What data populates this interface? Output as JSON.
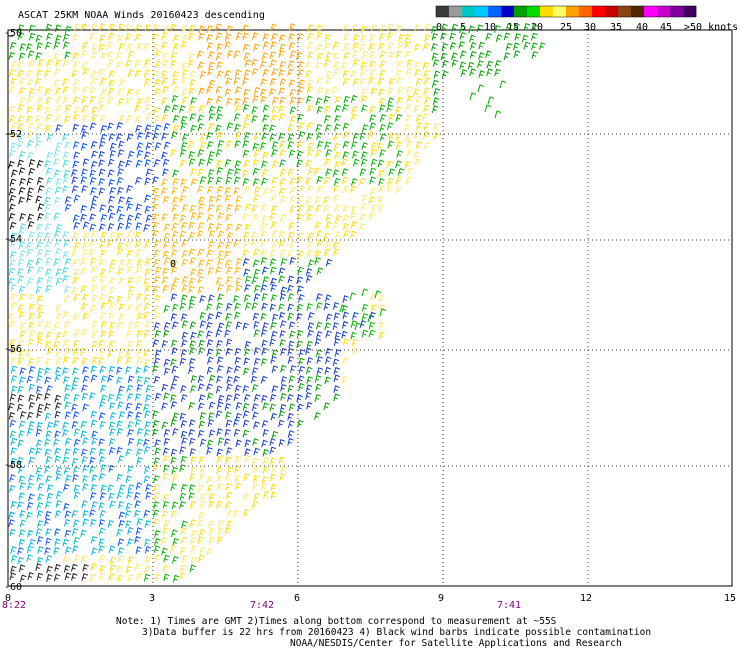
{
  "title": "ASCAT 25KM NOAA Winds 20160423 descending",
  "legend": {
    "colors": [
      "#3c3c3c",
      "#9a9a9a",
      "#00c8c8",
      "#00c8ff",
      "#0064ff",
      "#0000c8",
      "#00a000",
      "#00dc00",
      "#ffdc00",
      "#ffff64",
      "#ffa000",
      "#ff6400",
      "#ff0000",
      "#c80000",
      "#8b4513",
      "#502800",
      "#ff00ff",
      "#c800c8",
      "#8000a0",
      "#400060"
    ],
    "labels": [
      "0",
      "5",
      "10",
      "15",
      "20",
      "25",
      "30",
      "35",
      "40",
      "45",
      ">50 knots"
    ]
  },
  "axes": {
    "x_ticks": [
      "0",
      "3",
      "6",
      "9",
      "12",
      "15"
    ],
    "y_ticks": [
      "-50",
      "-52",
      "-54",
      "-56",
      "-58",
      "-60"
    ],
    "time_labels": [
      "8:22",
      "7:42",
      "7:41"
    ]
  },
  "contour_label": "0",
  "notes": [
    "Note: 1) Times are GMT 2)Times along bottom correspond to measurement at ~55S",
    "3)Data buffer is 22 hrs from 20160423 4) Black wind barbs indicate possible contamination",
    "NOAA/NESDIS/Center for Satellite Applications and Research"
  ]
}
